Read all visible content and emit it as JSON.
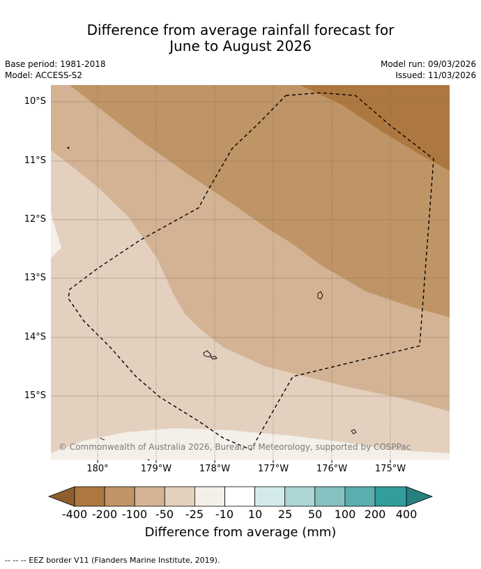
{
  "header": {
    "title_line1": "Difference from average rainfall forecast for",
    "title_line2": "June to August 2026",
    "base_period": "Base period: 1981-2018",
    "model": "Model: ACCESS-S2",
    "model_run": "Model run: 09/03/2026",
    "issued": "Issued: 11/03/2026"
  },
  "map": {
    "lat_labels": [
      "10°S",
      "11°S",
      "12°S",
      "13°S",
      "14°S",
      "15°S"
    ],
    "lon_labels": [
      "180°",
      "179°W",
      "178°W",
      "177°W",
      "176°W",
      "175°W"
    ],
    "copyright": "© Commonwealth of Australia 2026, Bureau of Meteorology, supported by COSPPac",
    "colors": {
      "band_-200": "#ad783f",
      "band_-100": "#bf9466",
      "band_-50": "#d3b394",
      "band_-25": "#e3d0bf",
      "band_-10": "#f4efe9",
      "border": "#000000"
    }
  },
  "colorbar": {
    "labels": [
      "-400",
      "-200",
      "-100",
      "-50",
      "-25",
      "-10",
      "10",
      "25",
      "50",
      "100",
      "200",
      "400"
    ],
    "colors": [
      "#8e5e2e",
      "#ad783f",
      "#bf9466",
      "#d3b394",
      "#e3d0bf",
      "#f4efe9",
      "#ffffff",
      "#d4eaea",
      "#acd5d5",
      "#86c0c0",
      "#5aaeae",
      "#329d9d",
      "#287f7f"
    ],
    "title": "Difference from average (mm)"
  },
  "footer": {
    "legend_text": "--  --  -- EEZ border V11 (Flanders Marine Institute, 2019)."
  }
}
